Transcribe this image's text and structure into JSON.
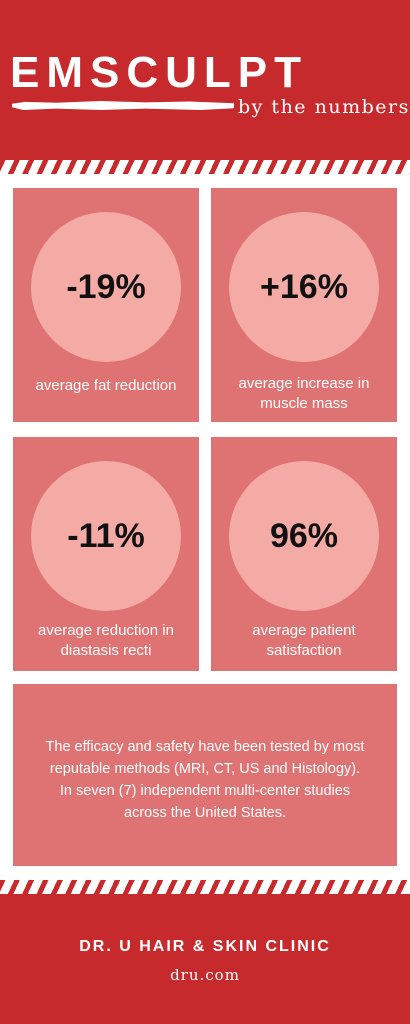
{
  "header": {
    "title": "EMSCULPT",
    "subtitle": "by the numbers"
  },
  "stats": [
    {
      "value": "-19%",
      "label": "average fat reduction"
    },
    {
      "value": "+16%",
      "label": "average increase in muscle mass"
    },
    {
      "value": "-11%",
      "label": "average reduction in diastasis recti"
    },
    {
      "value": "96%",
      "label": "average patient satisfaction"
    }
  ],
  "body": {
    "text": "The efficacy and safety have been tested by most reputable methods (MRI, CT, US and Histology). In seven (7) independent multi-center studies across the United States."
  },
  "footer": {
    "clinic": "DR. U HAIR & SKIN CLINIC",
    "url": "dru.com"
  },
  "colors": {
    "brand_red": "#c72a2c",
    "card": "#df7272",
    "circle": "#f4aaa5"
  }
}
